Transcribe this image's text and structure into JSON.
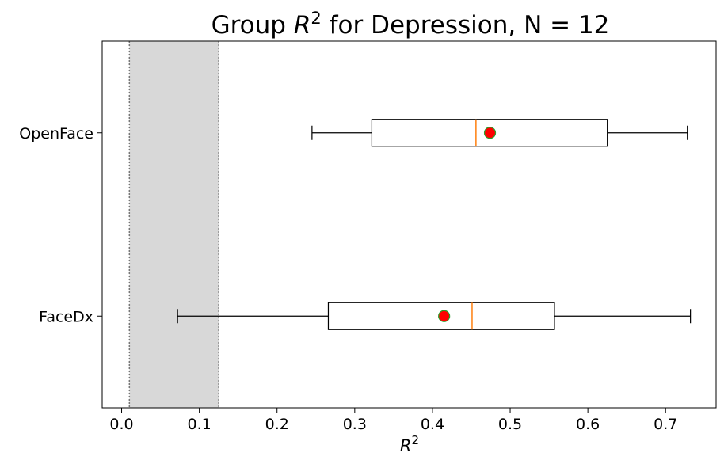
{
  "chart_data": {
    "type": "boxplot",
    "orientation": "horizontal",
    "title": {
      "pre": "Group ",
      "symbol": "R",
      "sup": "2",
      "post": " for Depression, N = 12"
    },
    "xlabel": {
      "symbol": "R",
      "sup": "2"
    },
    "ylabel": "",
    "xlim": [
      -0.025,
      0.765
    ],
    "xticks": [
      0.0,
      0.1,
      0.2,
      0.3,
      0.4,
      0.5,
      0.6,
      0.7
    ],
    "xtick_labels": [
      "0.0",
      "0.1",
      "0.2",
      "0.3",
      "0.4",
      "0.5",
      "0.6",
      "0.7"
    ],
    "categories": [
      "FaceDx",
      "OpenFace"
    ],
    "shaded_band": {
      "x0": 0.01,
      "x1": 0.125,
      "fill": "#d8d8d8",
      "edge": "#777777"
    },
    "boxes": [
      {
        "label": "FaceDx",
        "whisker_low": 0.072,
        "q1": 0.266,
        "median": 0.451,
        "q3": 0.557,
        "whisker_high": 0.732,
        "mean": 0.415
      },
      {
        "label": "OpenFace",
        "whisker_low": 0.245,
        "q1": 0.322,
        "median": 0.456,
        "q3": 0.625,
        "whisker_high": 0.728,
        "mean": 0.474
      }
    ],
    "colors": {
      "box_edge": "#000000",
      "median_line": "#ff7f0e",
      "mean_marker_fill": "#ff0000",
      "mean_marker_edge": "#2ca02c"
    },
    "grid": false,
    "legend": "none"
  }
}
